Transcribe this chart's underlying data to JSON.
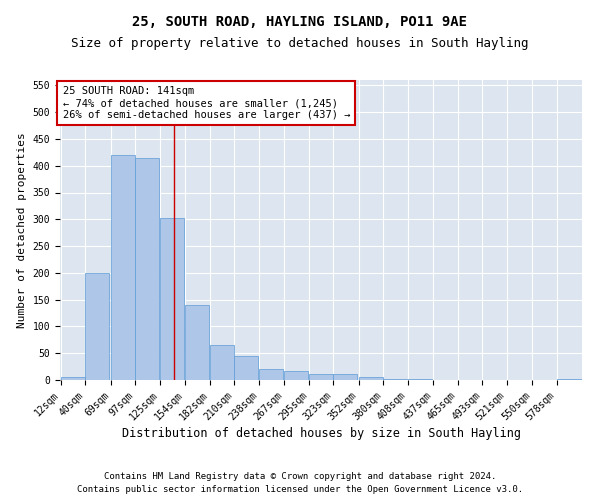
{
  "title": "25, SOUTH ROAD, HAYLING ISLAND, PO11 9AE",
  "subtitle": "Size of property relative to detached houses in South Hayling",
  "xlabel": "Distribution of detached houses by size in South Hayling",
  "ylabel": "Number of detached properties",
  "footnote1": "Contains HM Land Registry data © Crown copyright and database right 2024.",
  "footnote2": "Contains public sector information licensed under the Open Government Licence v3.0.",
  "annotation_line1": "25 SOUTH ROAD: 141sqm",
  "annotation_line2": "← 74% of detached houses are smaller (1,245)",
  "annotation_line3": "26% of semi-detached houses are larger (437) →",
  "bins": [
    12,
    40,
    69,
    97,
    125,
    154,
    182,
    210,
    238,
    267,
    295,
    323,
    352,
    380,
    408,
    437,
    465,
    493,
    521,
    550,
    578
  ],
  "bar_heights": [
    5,
    200,
    420,
    415,
    302,
    140,
    65,
    45,
    20,
    17,
    12,
    12,
    5,
    2,
    2,
    0,
    0,
    0,
    0,
    0,
    2
  ],
  "bar_color": "#aec6e8",
  "bar_edge_color": "#5b9bd5",
  "property_size": 141,
  "vline_color": "#cc0000",
  "ylim": [
    0,
    560
  ],
  "yticks": [
    0,
    50,
    100,
    150,
    200,
    250,
    300,
    350,
    400,
    450,
    500,
    550
  ],
  "bg_color": "#dde6f0",
  "grid_color": "#ffffff",
  "annotation_box_color": "#cc0000",
  "title_fontsize": 10,
  "subtitle_fontsize": 9,
  "xlabel_fontsize": 8.5,
  "ylabel_fontsize": 8,
  "tick_fontsize": 7,
  "annotation_fontsize": 7.5,
  "footnote_fontsize": 6.5
}
